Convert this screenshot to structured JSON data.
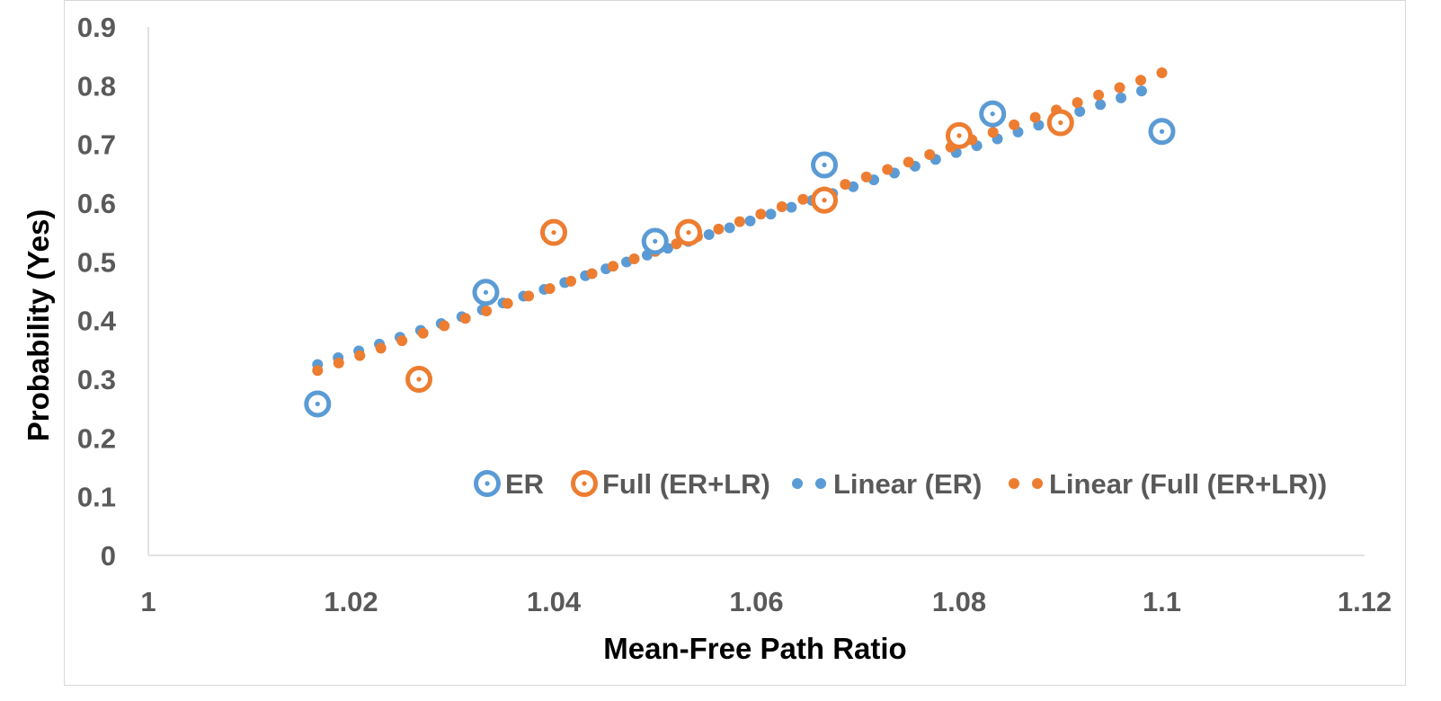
{
  "chart_data": {
    "type": "scatter",
    "title": "",
    "xlabel": "Mean-Free Path Ratio",
    "ylabel": "Probability (Yes)",
    "xlim": [
      1,
      1.12
    ],
    "ylim": [
      0,
      0.9
    ],
    "x_ticks": [
      1,
      1.02,
      1.04,
      1.06,
      1.08,
      1.1,
      1.12
    ],
    "x_tick_labels": [
      "1",
      "1.02",
      "1.04",
      "1.06",
      "1.08",
      "1.1",
      "1.12"
    ],
    "y_ticks": [
      0,
      0.1,
      0.2,
      0.3,
      0.4,
      0.5,
      0.6,
      0.7,
      0.8,
      0.9
    ],
    "y_tick_labels": [
      "0",
      "0.1",
      "0.2",
      "0.3",
      "0.4",
      "0.5",
      "0.6",
      "0.7",
      "0.8",
      "0.9"
    ],
    "grid": false,
    "legend_position": "bottom-right",
    "series": [
      {
        "name": "ER",
        "marker": "ring",
        "color": "#5B9BD5",
        "points": [
          [
            1.0167,
            0.258
          ],
          [
            1.0333,
            0.448
          ],
          [
            1.05,
            0.535
          ],
          [
            1.0667,
            0.665
          ],
          [
            1.0833,
            0.752
          ],
          [
            1.1,
            0.722
          ]
        ]
      },
      {
        "name": "Full (ER+LR)",
        "marker": "ring",
        "color": "#ED7D31",
        "points": [
          [
            1.0267,
            0.3
          ],
          [
            1.04,
            0.55
          ],
          [
            1.0533,
            0.55
          ],
          [
            1.0667,
            0.605
          ],
          [
            1.08,
            0.715
          ],
          [
            1.09,
            0.737
          ]
        ]
      },
      {
        "name": "Linear (ER)",
        "marker": "dots",
        "color": "#5B9BD5",
        "trend": {
          "x_start": 1.0167,
          "x_end": 1.098,
          "y_start": 0.325,
          "y_end": 0.791,
          "count": 41
        }
      },
      {
        "name": "Linear (Full (ER+LR))",
        "marker": "dots",
        "color": "#ED7D31",
        "trend": {
          "x_start": 1.0167,
          "x_end": 1.1,
          "y_start": 0.315,
          "y_end": 0.822,
          "count": 41
        }
      }
    ]
  }
}
